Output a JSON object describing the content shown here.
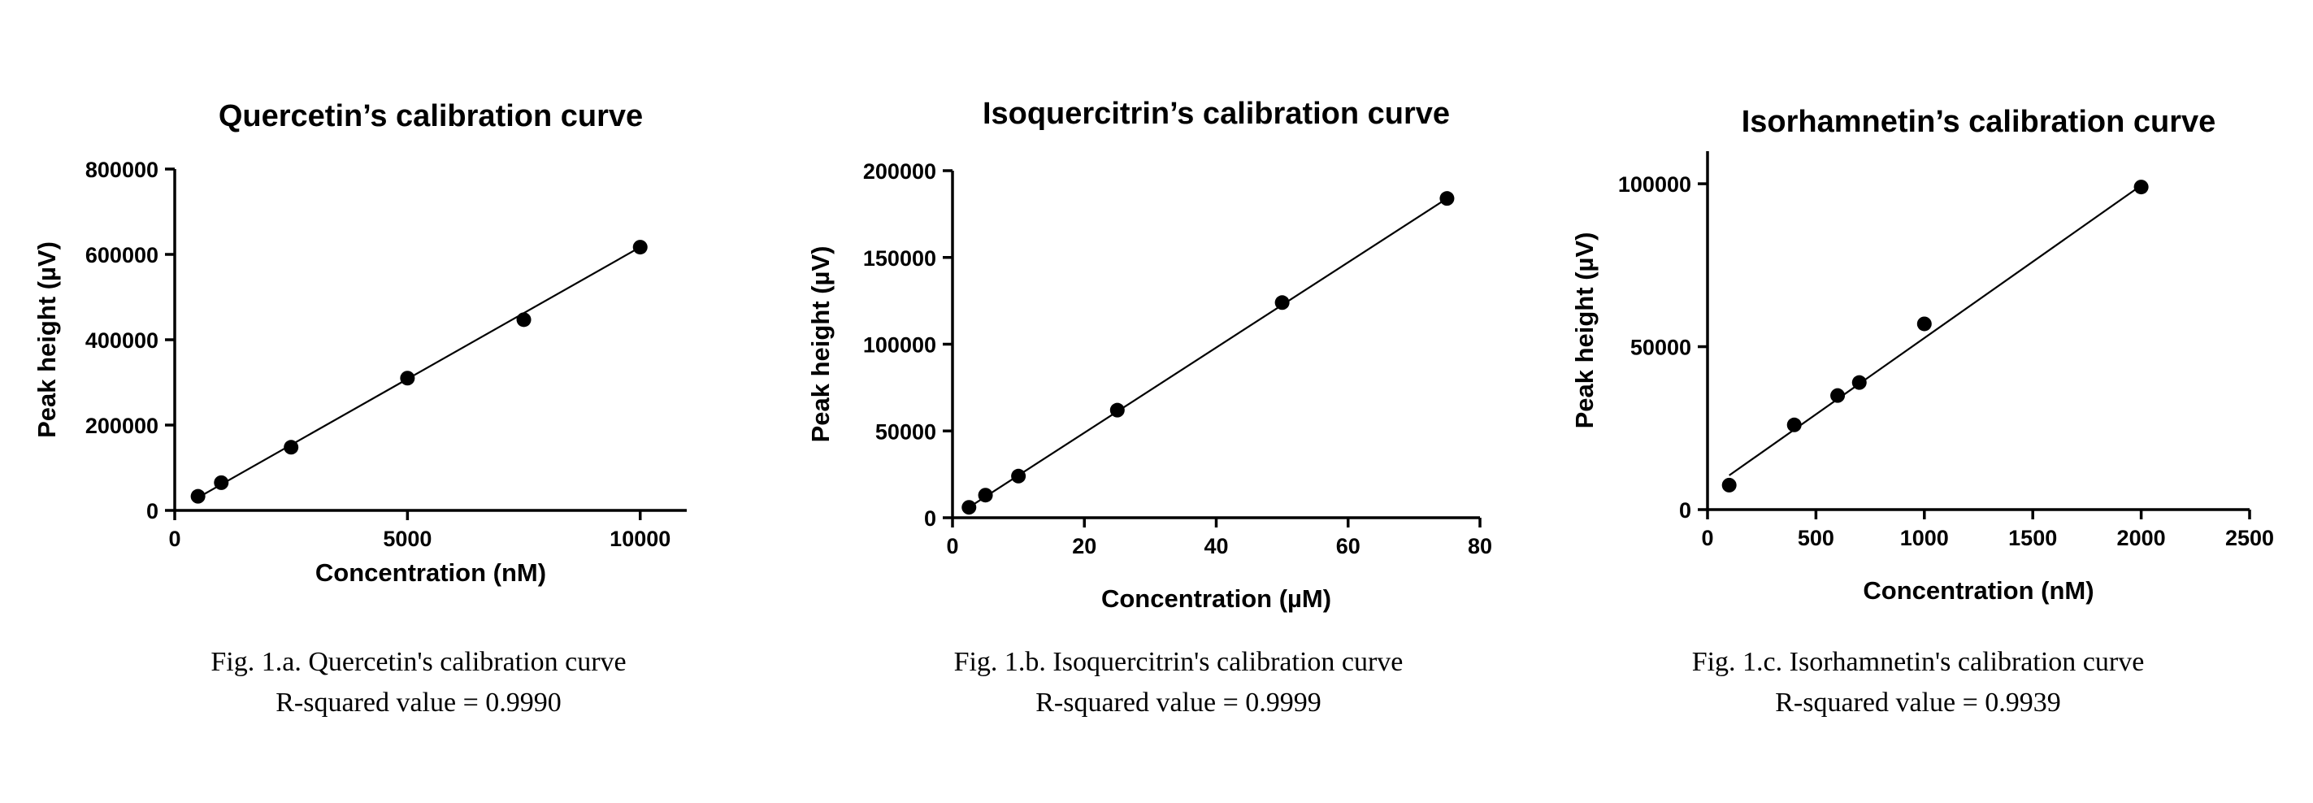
{
  "chart_data": [
    {
      "type": "scatter",
      "title": "Quercetin’s calibration curve",
      "xlabel": "Concentration (nM)",
      "ylabel": "Peak height (µV)",
      "xlim": [
        0,
        11000
      ],
      "ylim": [
        0,
        800000
      ],
      "xticks": [
        0,
        5000,
        10000
      ],
      "xtick_labels": [
        "0",
        "5000",
        "10000"
      ],
      "yticks": [
        0,
        200000,
        400000,
        600000,
        800000
      ],
      "ytick_labels": [
        "0",
        "200000",
        "400000",
        "600000",
        "800000"
      ],
      "series": [
        {
          "x": [
            500,
            1000,
            2500,
            5000,
            7500,
            10000
          ],
          "y": [
            33000,
            65000,
            148000,
            310000,
            447000,
            617000
          ]
        }
      ],
      "fit_line": {
        "x": [
          500,
          10000
        ],
        "y": [
          30000,
          617000
        ]
      },
      "grid": false,
      "caption": {
        "line1": "Fig. 1.a. Quercetin's calibration curve",
        "line2": "R-squared value = 0.9990"
      }
    },
    {
      "type": "scatter",
      "title": "Isoquercitrin’s calibration curve",
      "xlabel": "Concentration (µM)",
      "ylabel": "Peak height (µV)",
      "xlim": [
        0,
        80
      ],
      "ylim": [
        0,
        200000
      ],
      "xticks": [
        0,
        20,
        40,
        60,
        80
      ],
      "xtick_labels": [
        "0",
        "20",
        "40",
        "60",
        "80"
      ],
      "yticks": [
        0,
        50000,
        100000,
        150000,
        200000
      ],
      "ytick_labels": [
        "0",
        "50000",
        "100000",
        "150000",
        "200000"
      ],
      "series": [
        {
          "x": [
            2.5,
            5,
            10,
            25,
            50,
            75
          ],
          "y": [
            6000,
            13000,
            24000,
            62000,
            124000,
            184000
          ]
        }
      ],
      "fit_line": {
        "x": [
          2.5,
          75
        ],
        "y": [
          6000,
          184000
        ]
      },
      "grid": false,
      "caption": {
        "line1": "Fig. 1.b. Isoquercitrin's calibration curve",
        "line2": "R-squared value = 0.9999"
      }
    },
    {
      "type": "scatter",
      "title": "Isorhamnetin’s calibration curve",
      "xlabel": "Concentration (nM)",
      "ylabel": "Peak height (µV)",
      "xlim": [
        0,
        2500
      ],
      "ylim": [
        0,
        110000
      ],
      "xticks": [
        0,
        500,
        1000,
        1500,
        2000,
        2500
      ],
      "xtick_labels": [
        "0",
        "500",
        "1000",
        "1500",
        "2000",
        "2500"
      ],
      "yticks": [
        0,
        50000,
        100000
      ],
      "ytick_labels": [
        "0",
        "50000",
        "100000"
      ],
      "series": [
        {
          "x": [
            100,
            400,
            600,
            700,
            1000,
            2000
          ],
          "y": [
            7500,
            26000,
            35000,
            39000,
            57000,
            99000
          ]
        }
      ],
      "fit_line": {
        "x": [
          100,
          2000
        ],
        "y": [
          10500,
          99500
        ]
      },
      "grid": false,
      "caption": {
        "line1": "Fig. 1.c. Isorhamnetin's calibration curve",
        "line2": "R-squared value = 0.9939"
      }
    }
  ]
}
